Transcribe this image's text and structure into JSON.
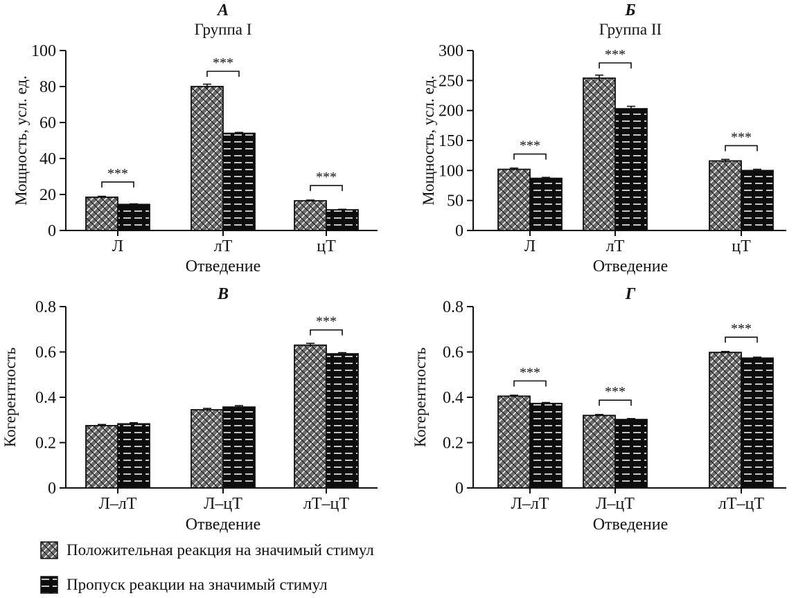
{
  "chart_data": [
    {
      "type": "bar",
      "panel_letter": "А",
      "title": "Группа I",
      "xlabel": "Отведение",
      "ylabel": "Мощность, усл. ед.",
      "ylim": [
        0,
        100
      ],
      "yticks": [
        "0",
        "20",
        "40",
        "60",
        "80",
        "100"
      ],
      "ytick_values": [
        0,
        20,
        40,
        60,
        80,
        100
      ],
      "categories": [
        "Л",
        "лТ",
        "цТ"
      ],
      "series": [
        {
          "values": [
            18.5,
            80,
            16.5
          ],
          "errors": [
            0.5,
            1.3,
            0.4
          ]
        },
        {
          "values": [
            14.5,
            54,
            11.5
          ],
          "errors": [
            0.3,
            0.5,
            0.3
          ]
        }
      ],
      "significance": [
        "***",
        "***",
        "***"
      ]
    },
    {
      "type": "bar",
      "panel_letter": "Б",
      "title": "Группа II",
      "xlabel": "Отведение",
      "ylabel": "Мощность, усл. ед.",
      "ylim": [
        0,
        300
      ],
      "yticks": [
        "0",
        "50",
        "100",
        "150",
        "200",
        "250",
        "300"
      ],
      "ytick_values": [
        0,
        50,
        100,
        150,
        200,
        250,
        300
      ],
      "categories": [
        "Л",
        "лТ",
        "цТ"
      ],
      "series": [
        {
          "values": [
            102,
            254,
            116
          ],
          "errors": [
            2,
            5,
            2.5
          ]
        },
        {
          "values": [
            87,
            203,
            100
          ],
          "errors": [
            1.5,
            4,
            2
          ]
        }
      ],
      "significance": [
        "***",
        "***",
        "***"
      ]
    },
    {
      "type": "bar",
      "panel_letter": "В",
      "title": "",
      "xlabel": "Отведение",
      "ylabel": "Когерентность",
      "ylim": [
        0,
        0.8
      ],
      "yticks": [
        "0",
        "0.2",
        "0.4",
        "0.6",
        "0.8"
      ],
      "ytick_values": [
        0,
        0.2,
        0.4,
        0.6,
        0.8
      ],
      "categories": [
        "Л–лТ",
        "Л–цТ",
        "лТ–цТ"
      ],
      "series": [
        {
          "values": [
            0.275,
            0.345,
            0.63
          ],
          "errors": [
            0.005,
            0.006,
            0.008
          ]
        },
        {
          "values": [
            0.283,
            0.357,
            0.592
          ],
          "errors": [
            0.005,
            0.006,
            0.005
          ]
        }
      ],
      "significance": [
        "",
        "",
        "***"
      ]
    },
    {
      "type": "bar",
      "panel_letter": "Г",
      "title": "",
      "xlabel": "Отведение",
      "ylabel": "Когерентность",
      "ylim": [
        0,
        0.8
      ],
      "yticks": [
        "0",
        "0.2",
        "0.4",
        "0.6",
        "0.8"
      ],
      "ytick_values": [
        0,
        0.2,
        0.4,
        0.6,
        0.8
      ],
      "categories": [
        "Л–лТ",
        "Л–цТ",
        "лТ–цТ"
      ],
      "series": [
        {
          "values": [
            0.405,
            0.32,
            0.598
          ],
          "errors": [
            0.004,
            0.004,
            0.004
          ]
        },
        {
          "values": [
            0.373,
            0.302,
            0.573
          ],
          "errors": [
            0.004,
            0.004,
            0.004
          ]
        }
      ],
      "significance": [
        "***",
        "***",
        "***"
      ]
    }
  ],
  "legend": {
    "positive_label": "Положительная реакция на значимый стимул",
    "omission_label": "Пропуск реакции на значимый стимул"
  },
  "colors": {
    "ink": "#111111",
    "bar_fill": "#ffffff"
  }
}
